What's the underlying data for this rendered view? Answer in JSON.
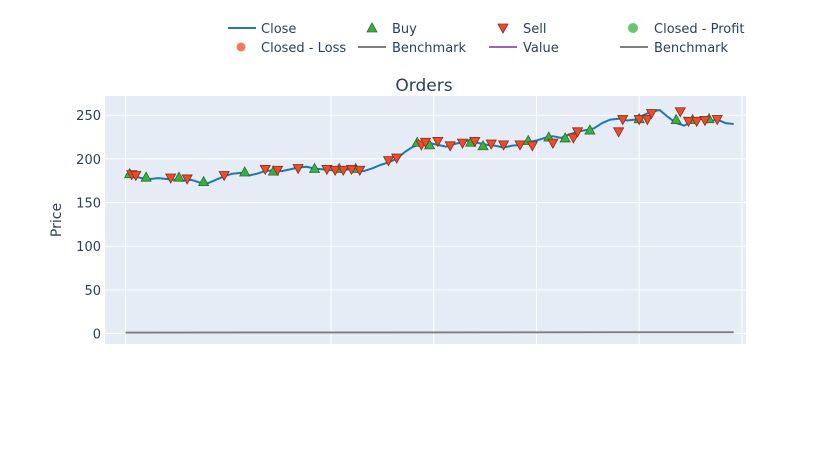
{
  "chart_data": {
    "type": "line",
    "title": "Orders",
    "xlabel": "",
    "ylabel": "Price",
    "ylim": [
      -12,
      272
    ],
    "xlim": [
      -10,
      302
    ],
    "yticks": [
      0,
      50,
      100,
      150,
      200,
      250
    ],
    "vgrid_x": [
      0,
      100,
      150,
      200,
      250,
      300
    ],
    "colors": {
      "close": "#1f77b4",
      "buy": "#37b13f",
      "sell": "#ea4d2c",
      "profit": "#37b13f",
      "loss": "#ea4d2c",
      "benchmark": "#7f7f7f",
      "value": "#9467bd",
      "plot_bg": "#e5ecf6",
      "grid": "#ffffff"
    },
    "legend": [
      {
        "name": "Close",
        "symbol": "line",
        "color": "#1f77b4"
      },
      {
        "name": "Buy",
        "symbol": "triangle-up",
        "color": "#37b13f"
      },
      {
        "name": "Sell",
        "symbol": "triangle-down",
        "color": "#ea4d2c"
      },
      {
        "name": "Closed - Profit",
        "symbol": "circle",
        "color": "#37b13f"
      },
      {
        "name": "Closed - Loss",
        "symbol": "circle",
        "color": "#ea4d2c"
      },
      {
        "name": "Benchmark",
        "symbol": "line",
        "color": "#7f7f7f"
      },
      {
        "name": "Value",
        "symbol": "line",
        "color": "#9467bd"
      },
      {
        "name": "Benchmark",
        "symbol": "line",
        "color": "#7f7f7f"
      }
    ],
    "close": {
      "x": [
        0,
        4,
        8,
        12,
        16,
        20,
        24,
        28,
        32,
        36,
        40,
        44,
        48,
        52,
        56,
        60,
        64,
        68,
        72,
        76,
        80,
        84,
        88,
        92,
        96,
        100,
        104,
        108,
        112,
        116,
        120,
        124,
        128,
        132,
        136,
        140,
        144,
        148,
        152,
        156,
        160,
        164,
        168,
        172,
        176,
        180,
        184,
        188,
        192,
        196,
        200,
        204,
        208,
        212,
        216,
        220,
        224,
        228,
        232,
        236,
        240,
        244,
        248,
        252,
        256,
        260,
        264,
        268,
        272,
        276,
        280,
        284,
        288,
        292,
        296
      ],
      "y": [
        182,
        180,
        178,
        177,
        178,
        177,
        176,
        175,
        176,
        173,
        172,
        176,
        180,
        183,
        184,
        181,
        183,
        186,
        187,
        186,
        188,
        190,
        191,
        189,
        188,
        187,
        186,
        188,
        187,
        186,
        189,
        193,
        196,
        200,
        208,
        214,
        217,
        218,
        216,
        214,
        217,
        219,
        222,
        218,
        216,
        215,
        213,
        215,
        216,
        219,
        221,
        224,
        226,
        224,
        228,
        231,
        233,
        235,
        241,
        245,
        246,
        244,
        245,
        250,
        254,
        256,
        248,
        241,
        238,
        244,
        246,
        243,
        245,
        241,
        240
      ]
    },
    "buy": {
      "x": [
        2,
        10,
        26,
        38,
        58,
        72,
        92,
        104,
        112,
        142,
        148,
        168,
        174,
        196,
        206,
        214,
        226,
        250,
        268,
        276,
        284
      ],
      "y": [
        183,
        179,
        179,
        174,
        185,
        186,
        189,
        189,
        189,
        219,
        216,
        219,
        215,
        221,
        225,
        224,
        233,
        246,
        245,
        245,
        246
      ]
    },
    "sell": {
      "x": [
        3,
        5,
        22,
        30,
        48,
        68,
        74,
        84,
        98,
        102,
        106,
        110,
        114,
        128,
        132,
        144,
        146,
        152,
        158,
        164,
        170,
        178,
        184,
        192,
        198,
        208,
        218,
        220,
        240,
        242,
        250,
        254,
        256,
        270,
        274,
        278,
        282,
        288
      ],
      "y": [
        182,
        181,
        178,
        177,
        181,
        188,
        187,
        189,
        188,
        187,
        187,
        188,
        187,
        198,
        201,
        216,
        219,
        220,
        215,
        218,
        220,
        217,
        216,
        216,
        215,
        218,
        224,
        231,
        231,
        245,
        245,
        245,
        252,
        254,
        243,
        243,
        244,
        245
      ]
    },
    "benchmark": {
      "x": [
        0,
        296
      ],
      "y": [
        1,
        1.5
      ]
    }
  }
}
